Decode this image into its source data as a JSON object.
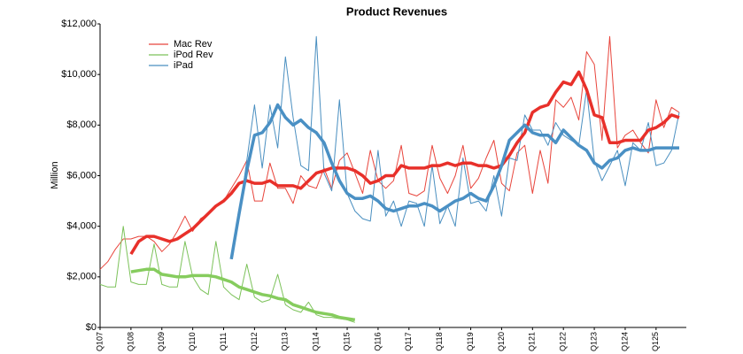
{
  "chart_data": {
    "type": "line",
    "title": "Product Revenues",
    "y_label": "Million",
    "categories": [
      "Q107",
      null,
      null,
      null,
      "Q108",
      null,
      null,
      null,
      "Q109",
      null,
      null,
      null,
      "Q110",
      null,
      null,
      null,
      "Q111",
      null,
      null,
      null,
      "Q112",
      null,
      null,
      null,
      "Q113",
      null,
      null,
      null,
      "Q114",
      null,
      null,
      null,
      "Q115",
      null,
      null,
      null,
      "Q116",
      null,
      null,
      null,
      "Q117",
      null,
      null,
      null,
      "Q118",
      null,
      null,
      null,
      "Q119",
      null,
      null,
      null,
      "Q120",
      null,
      null,
      null,
      "Q121",
      null,
      null,
      null,
      "Q122",
      null,
      null,
      null,
      "Q123",
      null,
      null,
      null,
      "Q124",
      null,
      null,
      null,
      "Q125",
      null,
      null,
      null
    ],
    "series": [
      {
        "name": "Mac Rev",
        "color": "#e8453c",
        "values": [
          2300,
          2600,
          3100,
          3500,
          3500,
          3600,
          3600,
          3400,
          3000,
          3300,
          3800,
          4400,
          3800,
          4300,
          4500,
          4800,
          5000,
          5500,
          6000,
          6600,
          5000,
          5000,
          6500,
          5500,
          5500,
          4900,
          6000,
          5600,
          5500,
          6300,
          5500,
          6600,
          6900,
          6100,
          5300,
          7000,
          5800,
          5500,
          5800,
          7200,
          5300,
          5200,
          5400,
          7200,
          5900,
          5300,
          6000,
          7200,
          5500,
          5900,
          6700,
          7400,
          5700,
          5400,
          6900,
          7200,
          5300,
          7000,
          5700,
          9000,
          8700,
          9100,
          8200,
          10900,
          10400,
          7400,
          11500,
          7100,
          7600,
          7800,
          7300,
          6900,
          9000,
          7900,
          8700,
          8500
        ]
      },
      {
        "name": "iPod Rev",
        "color": "#7cc25a",
        "values": [
          1700,
          1600,
          1600,
          4000,
          1800,
          1700,
          1700,
          3300,
          1700,
          1600,
          1600,
          3400,
          2000,
          1500,
          1300,
          3400,
          1600,
          1300,
          1100,
          2500,
          1200,
          1000,
          1100,
          2100,
          900,
          700,
          600,
          1000,
          500,
          400,
          400,
          350,
          300,
          200,
          null,
          null,
          null,
          null,
          null,
          null,
          null,
          null,
          null,
          null,
          null,
          null,
          null,
          null,
          null,
          null,
          null,
          null,
          null,
          null,
          null,
          null,
          null,
          null,
          null,
          null,
          null,
          null,
          null,
          null,
          null,
          null,
          null,
          null,
          null,
          null,
          null,
          null,
          null,
          null,
          null,
          null
        ]
      },
      {
        "name": "iPad",
        "color": "#4a8fc0",
        "values": [
          null,
          null,
          null,
          null,
          null,
          null,
          null,
          null,
          null,
          null,
          null,
          null,
          null,
          null,
          null,
          null,
          null,
          2700,
          4400,
          6600,
          8800,
          6300,
          8800,
          7100,
          10700,
          8300,
          6400,
          6200,
          11500,
          6100,
          5400,
          9000,
          5300,
          4600,
          4300,
          4200,
          7000,
          4400,
          5000,
          4000,
          5000,
          4900,
          4000,
          6400,
          4100,
          4800,
          4000,
          6700,
          4900,
          5000,
          4600,
          6000,
          4400,
          6700,
          6600,
          8400,
          7800,
          7800,
          7200,
          8100,
          7600,
          7400,
          7200,
          9400,
          6600,
          5800,
          6400,
          7000,
          5600,
          7300,
          7000,
          8100,
          6400,
          6500,
          7000,
          8500
        ]
      }
    ],
    "trend_series": [
      {
        "color": "#e8302a",
        "values": [
          null,
          null,
          null,
          null,
          2900,
          3400,
          3600,
          3600,
          3500,
          3400,
          3500,
          3700,
          3900,
          4200,
          4500,
          4800,
          5000,
          5300,
          5700,
          5800,
          5700,
          5700,
          5800,
          5600,
          5600,
          5600,
          5500,
          5800,
          6100,
          6200,
          6300,
          6300,
          6300,
          6200,
          6000,
          5700,
          5800,
          6000,
          6000,
          6400,
          6300,
          6300,
          6300,
          6400,
          6400,
          6500,
          6400,
          6500,
          6500,
          6400,
          6400,
          6300,
          6400,
          6800,
          7300,
          7700,
          8500,
          8700,
          8800,
          9300,
          9700,
          9600,
          10100,
          9400,
          8400,
          8300,
          7300,
          7300,
          7400,
          7400,
          7400,
          7800,
          7900,
          8100,
          8400,
          8300
        ]
      },
      {
        "color": "#86cc5e",
        "values": [
          null,
          null,
          null,
          null,
          2200,
          2250,
          2300,
          2300,
          2100,
          2050,
          2000,
          2000,
          2050,
          2050,
          2050,
          2000,
          1900,
          1800,
          1600,
          1500,
          1400,
          1300,
          1250,
          1150,
          1100,
          900,
          800,
          700,
          600,
          550,
          500,
          400,
          350,
          300,
          null,
          null,
          null,
          null,
          null,
          null,
          null,
          null,
          null,
          null,
          null,
          null,
          null,
          null,
          null,
          null,
          null,
          null,
          null,
          null,
          null,
          null,
          null,
          null,
          null,
          null,
          null,
          null,
          null,
          null,
          null,
          null,
          null,
          null,
          null,
          null,
          null,
          null,
          null,
          null,
          null,
          null
        ]
      },
      {
        "color": "#4a90c4",
        "values": [
          null,
          null,
          null,
          null,
          null,
          null,
          null,
          null,
          null,
          null,
          null,
          null,
          null,
          null,
          null,
          null,
          null,
          2700,
          4500,
          6200,
          7600,
          7700,
          8100,
          8800,
          8300,
          8000,
          8200,
          7900,
          7700,
          7300,
          6500,
          5800,
          5300,
          5100,
          5100,
          5200,
          5000,
          4700,
          4600,
          4700,
          4800,
          4800,
          4900,
          4800,
          4600,
          4800,
          5000,
          5100,
          5300,
          5100,
          5000,
          5600,
          6400,
          7400,
          7700,
          8000,
          7700,
          7600,
          7600,
          7300,
          7800,
          7500,
          7200,
          7000,
          6500,
          6300,
          6600,
          6700,
          7000,
          7100,
          7000,
          7000,
          7100,
          7100,
          7100,
          7100
        ]
      }
    ],
    "ylim": [
      0,
      12000
    ],
    "yticks": [
      {
        "value": 0,
        "label": "$0"
      },
      {
        "value": 2000,
        "label": "$2,000"
      },
      {
        "value": 4000,
        "label": "$4,000"
      },
      {
        "value": 6000,
        "label": "$6,000"
      },
      {
        "value": 8000,
        "label": "$8,000"
      },
      {
        "value": 10000,
        "label": "$10,000"
      },
      {
        "value": 12000,
        "label": "$12,000"
      }
    ],
    "legend": "top-left",
    "grid": false
  }
}
